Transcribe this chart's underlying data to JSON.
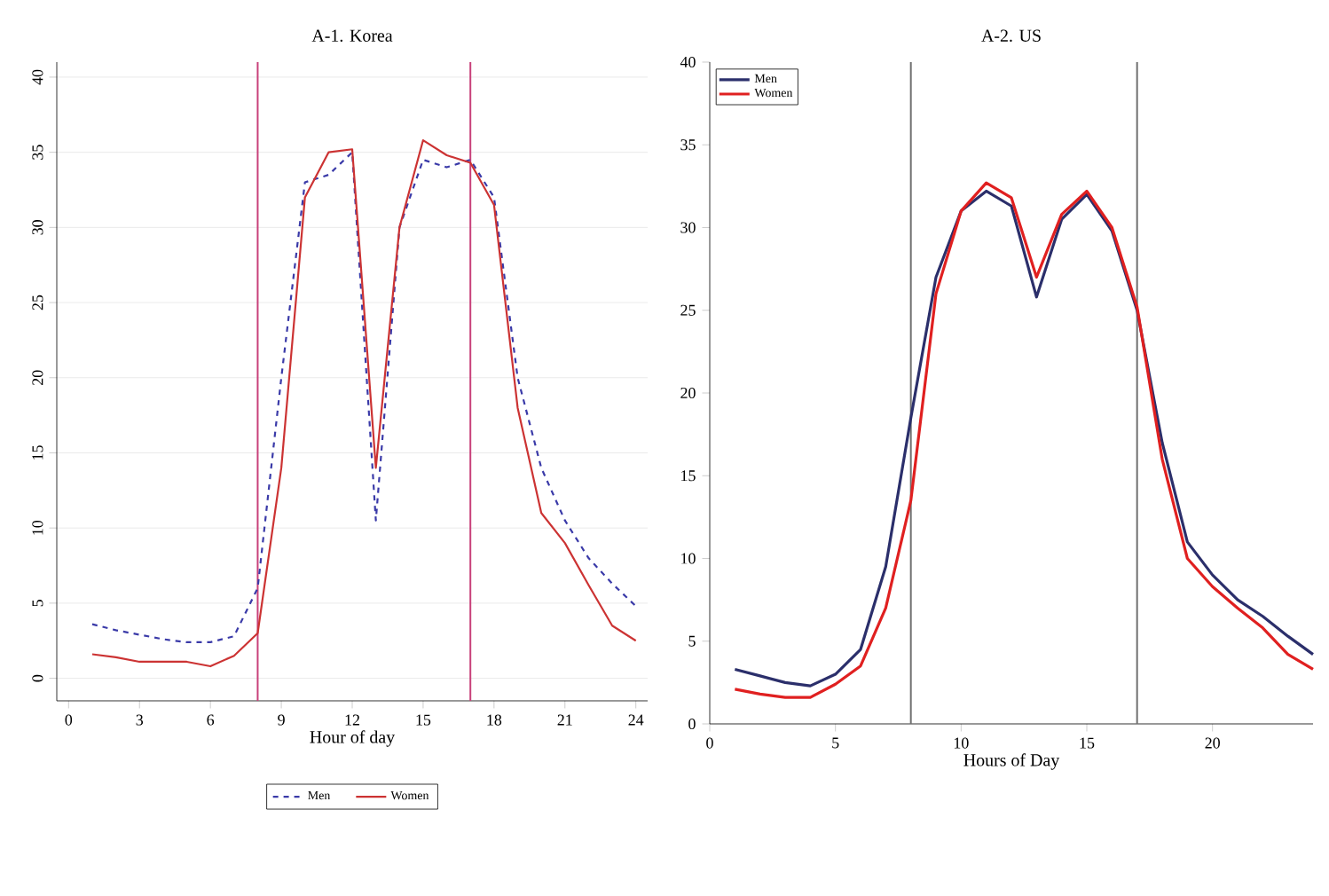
{
  "chart_data": [
    {
      "type": "line",
      "title": "A-1. Korea",
      "xlabel": "Hour of day",
      "x": [
        1,
        2,
        3,
        4,
        5,
        6,
        7,
        8,
        9,
        10,
        11,
        12,
        13,
        14,
        15,
        16,
        17,
        18,
        19,
        20,
        21,
        22,
        23,
        24
      ],
      "series": [
        {
          "name": "Men",
          "color": "#3a3aa8",
          "line_style": "dashed",
          "values": [
            3.6,
            3.2,
            2.9,
            2.6,
            2.4,
            2.4,
            2.8,
            6,
            20,
            33,
            33.5,
            35,
            10.5,
            30,
            34.5,
            34,
            34.5,
            32,
            20,
            14,
            10.5,
            8,
            6.3,
            4.8
          ]
        },
        {
          "name": "Women",
          "color": "#cc3333",
          "line_style": "solid",
          "values": [
            1.6,
            1.4,
            1.1,
            1.1,
            1.1,
            0.8,
            1.5,
            3,
            14,
            32,
            35,
            35.2,
            14,
            30,
            35.8,
            34.8,
            34.3,
            31.5,
            18,
            11,
            9,
            6.2,
            3.5,
            2.5
          ]
        }
      ],
      "xlim": [
        -0.5,
        24.5
      ],
      "ylim": [
        -1.5,
        41
      ],
      "xticks": [
        0,
        3,
        6,
        9,
        12,
        15,
        18,
        21,
        24
      ],
      "yticks": [
        0,
        5,
        10,
        15,
        20,
        25,
        30,
        35,
        40
      ],
      "grid": "y",
      "legend": "bottom",
      "marker": "none",
      "ref_lines": [
        {
          "axis": "x",
          "value": 8,
          "color": "#c8407a"
        },
        {
          "axis": "x",
          "value": 17,
          "color": "#c8407a"
        }
      ]
    },
    {
      "type": "line",
      "title": "A-2. US",
      "xlabel": "Hours of Day",
      "x": [
        1,
        2,
        3,
        4,
        5,
        6,
        7,
        8,
        9,
        10,
        11,
        12,
        13,
        14,
        15,
        16,
        17,
        18,
        19,
        20,
        21,
        22,
        23,
        24
      ],
      "series": [
        {
          "name": "Men",
          "color": "#2b2f6b",
          "line_style": "solid",
          "values": [
            3.3,
            2.9,
            2.5,
            2.3,
            3,
            4.5,
            9.5,
            18.5,
            27,
            31,
            32.2,
            31.3,
            25.8,
            30.5,
            32,
            29.8,
            25,
            17,
            11,
            9,
            7.5,
            6.5,
            5.3,
            4.2
          ]
        },
        {
          "name": "Women",
          "color": "#e02020",
          "line_style": "solid",
          "values": [
            2.1,
            1.8,
            1.6,
            1.6,
            2.4,
            3.5,
            7,
            13.5,
            26,
            31,
            32.7,
            31.8,
            27,
            30.8,
            32.2,
            30,
            25.2,
            16,
            10,
            8.3,
            7,
            5.8,
            4.2,
            3.3
          ]
        }
      ],
      "xlim": [
        0,
        24
      ],
      "ylim": [
        0,
        40
      ],
      "xticks": [
        0,
        5,
        10,
        15,
        20
      ],
      "yticks": [
        0,
        5,
        10,
        15,
        20,
        25,
        30,
        35,
        40
      ],
      "grid": false,
      "legend": "top left",
      "marker": "none",
      "ref_lines": [
        {
          "axis": "x",
          "value": 8,
          "color": "#707070"
        },
        {
          "axis": "x",
          "value": 17,
          "color": "#707070"
        }
      ]
    }
  ]
}
